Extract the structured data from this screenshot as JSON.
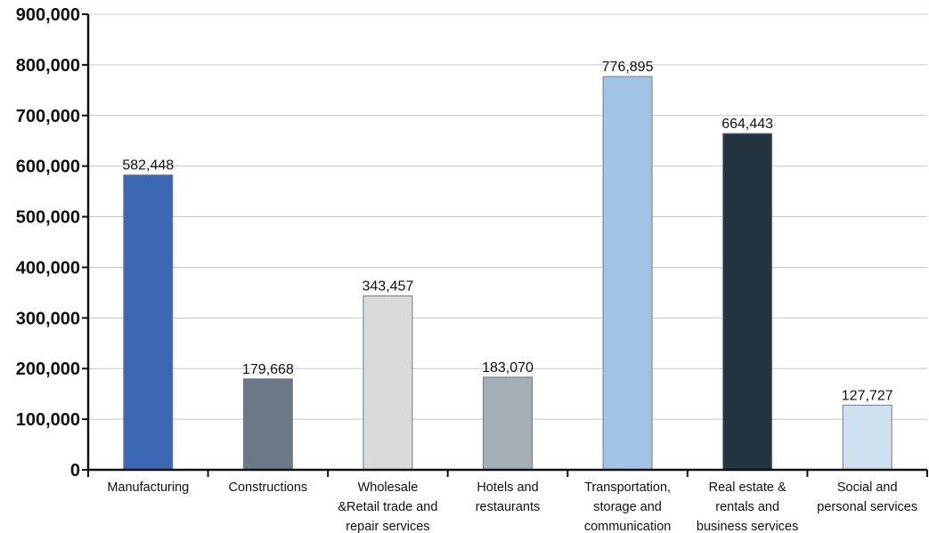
{
  "chart_data": {
    "type": "bar",
    "title": "",
    "xlabel": "",
    "ylabel": "",
    "ylim": [
      0,
      900000
    ],
    "yticks": [
      0,
      100000,
      200000,
      300000,
      400000,
      500000,
      600000,
      700000,
      800000,
      900000
    ],
    "ytick_labels": [
      "0",
      "100,000",
      "200,000",
      "300,000",
      "400,000",
      "500,000",
      "600,000",
      "700,000",
      "800,000",
      "900,000"
    ],
    "grid": true,
    "legend": "none",
    "categories": [
      [
        "Manufacturing"
      ],
      [
        "Constructions"
      ],
      [
        "Wholesale",
        "&Retail trade and",
        "repair services"
      ],
      [
        "Hotels and",
        "restaurants"
      ],
      [
        "Transportation,",
        "storage and",
        "communication"
      ],
      [
        "Real estate &",
        "rentals and",
        "business services"
      ],
      [
        "Social and",
        "personal services"
      ]
    ],
    "values": [
      582448,
      179668,
      343457,
      183070,
      776895,
      664443,
      127727
    ],
    "value_labels": [
      "582,448",
      "179,668",
      "343,457",
      "183,070",
      "776,895",
      "664,443",
      "127,727"
    ],
    "colors": [
      "#3b67b3",
      "#6c7885",
      "#d9dadc",
      "#a5adb6",
      "#a1c4e6",
      "#233340",
      "#cfe0f0"
    ]
  }
}
